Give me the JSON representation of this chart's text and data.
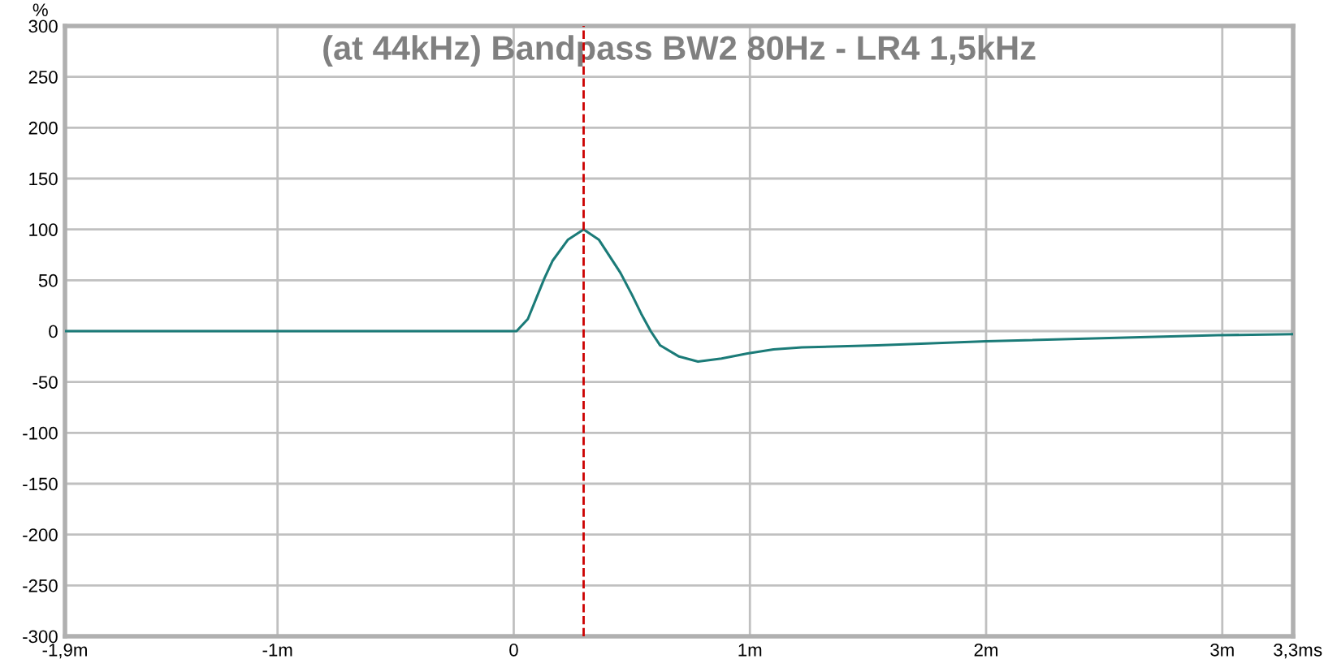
{
  "chart_data": {
    "type": "line",
    "title": "(at 44kHz) Bandpass BW2 80Hz - LR4 1,5kHz",
    "xlabel": "s",
    "ylabel": "%",
    "x": [
      -1.9,
      -1,
      0,
      0.012,
      0.06,
      0.095,
      0.13,
      0.164,
      0.23,
      0.296,
      0.36,
      0.45,
      0.5,
      0.54,
      0.58,
      0.62,
      0.7,
      0.78,
      0.88,
      0.99,
      1.1,
      1.22,
      1.54,
      2,
      2.98,
      3.3
    ],
    "series": [
      {
        "color": "#1b7b78",
        "values": [
          0,
          0,
          0,
          0,
          12,
          32,
          52,
          69,
          90,
          100,
          90,
          58,
          36,
          17,
          0,
          -14,
          -25,
          -30,
          -27,
          -22,
          -18,
          -16,
          -14,
          -10,
          -4,
          -3
        ]
      }
    ],
    "xlim": [
      -1.9,
      3.3
    ],
    "xticks": [
      {
        "value": -1.9,
        "label": "-1,9m"
      },
      {
        "value": -1,
        "label": "-1m"
      },
      0,
      {
        "value": 1,
        "label": "1m"
      },
      {
        "value": 2,
        "label": "2m"
      },
      {
        "value": 3,
        "label": "3m"
      },
      {
        "value": 3.3,
        "label": "3,3m"
      }
    ],
    "ylim": [
      -300,
      300
    ],
    "yticks": [
      -300,
      -250,
      -200,
      -150,
      -100,
      -50,
      0,
      50,
      100,
      150,
      200,
      250,
      300
    ],
    "ref_lines": [
      {
        "axis": "x",
        "value": 0.296,
        "color": "#cc0000",
        "line_style": "dashed"
      }
    ],
    "grid": true,
    "legend": false,
    "line_style": "solid",
    "marker": "none"
  }
}
